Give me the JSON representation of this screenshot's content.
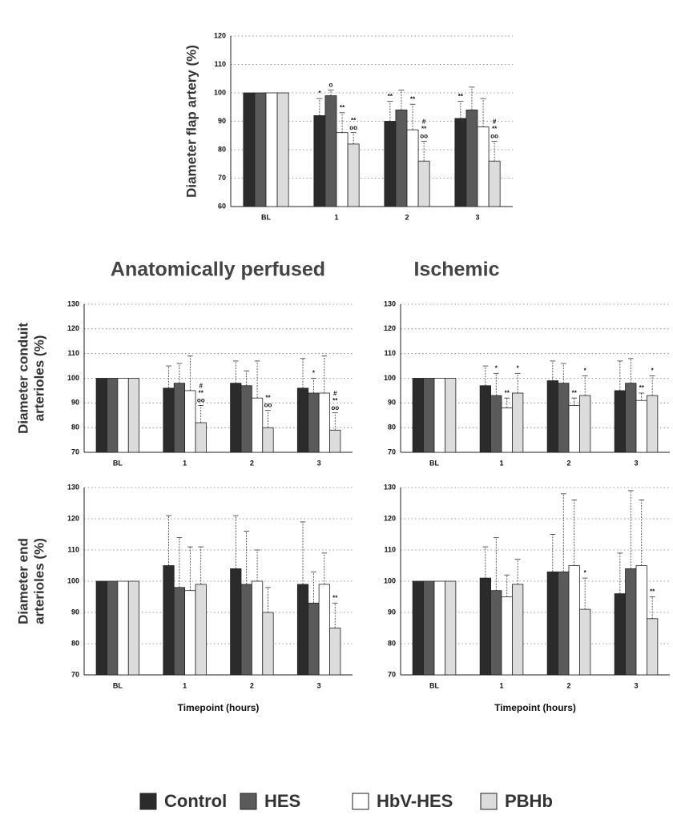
{
  "chart_data": [
    {
      "type": "bar",
      "ylabel": [
        "Diameter flap artery (%)"
      ],
      "categories": [
        "BL",
        "1",
        "2",
        "3"
      ],
      "ylim": [
        60,
        120
      ],
      "yticks": [
        60,
        70,
        80,
        90,
        100,
        110,
        120
      ],
      "grid": true,
      "series": [
        {
          "name": "Control",
          "color": "#2b2b2b",
          "values": [
            100,
            92,
            90,
            91
          ],
          "errors": [
            null,
            6,
            7,
            6
          ],
          "annotations": [
            null,
            [
              "*"
            ],
            [
              "**"
            ],
            [
              "**"
            ]
          ]
        },
        {
          "name": "HES",
          "color": "#5a5a5a",
          "values": [
            100,
            99,
            94,
            94
          ],
          "errors": [
            null,
            2,
            7,
            8
          ],
          "annotations": [
            null,
            [
              "o"
            ],
            null,
            null
          ]
        },
        {
          "name": "HbV-HES",
          "color": "#ffffff",
          "values": [
            100,
            86,
            87,
            88
          ],
          "errors": [
            null,
            7,
            9,
            10
          ],
          "annotations": [
            null,
            [
              "**"
            ],
            [
              "**"
            ],
            null
          ]
        },
        {
          "name": "PBHb",
          "color": "#dcdcdc",
          "values": [
            100,
            82,
            76,
            76
          ],
          "errors": [
            null,
            4,
            7,
            7
          ],
          "annotations": [
            null,
            [
              "**",
              "oo"
            ],
            [
              "#",
              "**",
              "oo"
            ],
            [
              "#",
              "**",
              "oo"
            ]
          ]
        }
      ]
    },
    {
      "type": "bar",
      "title": "Anatomically perfused",
      "ylabel": [
        "Diameter conduit",
        "arterioles (%)"
      ],
      "categories": [
        "BL",
        "1",
        "2",
        "3"
      ],
      "ylim": [
        70,
        130
      ],
      "yticks": [
        70,
        80,
        90,
        100,
        110,
        120,
        130
      ],
      "grid": true,
      "series": [
        {
          "name": "Control",
          "color": "#2b2b2b",
          "values": [
            100,
            96,
            98,
            96
          ],
          "errors": [
            null,
            9,
            9,
            12
          ],
          "annotations": [
            null,
            null,
            null,
            null
          ]
        },
        {
          "name": "HES",
          "color": "#5a5a5a",
          "values": [
            100,
            98,
            97,
            94
          ],
          "errors": [
            null,
            8,
            6,
            6
          ],
          "annotations": [
            null,
            null,
            null,
            [
              "*"
            ]
          ]
        },
        {
          "name": "HbV-HES",
          "color": "#ffffff",
          "values": [
            100,
            95,
            92,
            94
          ],
          "errors": [
            null,
            14,
            15,
            15
          ],
          "annotations": [
            null,
            null,
            null,
            null
          ]
        },
        {
          "name": "PBHb",
          "color": "#dcdcdc",
          "values": [
            100,
            82,
            80,
            79
          ],
          "errors": [
            null,
            7,
            7,
            7
          ],
          "annotations": [
            null,
            [
              "#",
              "**",
              "oo"
            ],
            [
              "**",
              "oo"
            ],
            [
              "#",
              "**",
              "oo"
            ]
          ]
        }
      ]
    },
    {
      "type": "bar",
      "title": "Ischemic",
      "categories": [
        "BL",
        "1",
        "2",
        "3"
      ],
      "ylim": [
        70,
        130
      ],
      "yticks": [
        70,
        80,
        90,
        100,
        110,
        120,
        130
      ],
      "grid": true,
      "series": [
        {
          "name": "Control",
          "color": "#2b2b2b",
          "values": [
            100,
            97,
            99,
            95
          ],
          "errors": [
            null,
            8,
            8,
            12
          ],
          "annotations": [
            null,
            null,
            null,
            null
          ]
        },
        {
          "name": "HES",
          "color": "#5a5a5a",
          "values": [
            100,
            93,
            98,
            98
          ],
          "errors": [
            null,
            9,
            8,
            10
          ],
          "annotations": [
            null,
            [
              "*"
            ],
            null,
            null
          ]
        },
        {
          "name": "HbV-HES",
          "color": "#ffffff",
          "values": [
            100,
            88,
            89,
            91
          ],
          "errors": [
            null,
            4,
            3,
            3
          ],
          "annotations": [
            null,
            [
              "**"
            ],
            [
              "**"
            ],
            [
              "**"
            ]
          ]
        },
        {
          "name": "PBHb",
          "color": "#dcdcdc",
          "values": [
            100,
            94,
            93,
            93
          ],
          "errors": [
            null,
            8,
            8,
            8
          ],
          "annotations": [
            null,
            [
              "*"
            ],
            [
              "*"
            ],
            [
              "*"
            ]
          ]
        }
      ]
    },
    {
      "type": "bar",
      "ylabel": [
        "Diameter end",
        "arterioles (%)"
      ],
      "xlabel": "Timepoint (hours)",
      "categories": [
        "BL",
        "1",
        "2",
        "3"
      ],
      "ylim": [
        70,
        130
      ],
      "yticks": [
        70,
        80,
        90,
        100,
        110,
        120,
        130
      ],
      "grid": true,
      "series": [
        {
          "name": "Control",
          "color": "#2b2b2b",
          "values": [
            100,
            105,
            104,
            99
          ],
          "errors": [
            null,
            16,
            17,
            20
          ],
          "annotations": [
            null,
            null,
            null,
            null
          ]
        },
        {
          "name": "HES",
          "color": "#5a5a5a",
          "values": [
            100,
            98,
            99,
            93
          ],
          "errors": [
            null,
            16,
            17,
            10
          ],
          "annotations": [
            null,
            null,
            null,
            null
          ]
        },
        {
          "name": "HbV-HES",
          "color": "#ffffff",
          "values": [
            100,
            97,
            100,
            99
          ],
          "errors": [
            null,
            14,
            10,
            10
          ],
          "annotations": [
            null,
            null,
            null,
            null
          ]
        },
        {
          "name": "PBHb",
          "color": "#dcdcdc",
          "values": [
            100,
            99,
            90,
            85
          ],
          "errors": [
            null,
            12,
            8,
            8
          ],
          "annotations": [
            null,
            null,
            null,
            [
              "**"
            ]
          ]
        }
      ]
    },
    {
      "type": "bar",
      "xlabel": "Timepoint (hours)",
      "categories": [
        "BL",
        "1",
        "2",
        "3"
      ],
      "ylim": [
        70,
        130
      ],
      "yticks": [
        70,
        80,
        90,
        100,
        110,
        120,
        130
      ],
      "grid": true,
      "series": [
        {
          "name": "Control",
          "color": "#2b2b2b",
          "values": [
            100,
            101,
            103,
            96
          ],
          "errors": [
            null,
            10,
            12,
            13
          ],
          "annotations": [
            null,
            null,
            null,
            null
          ]
        },
        {
          "name": "HES",
          "color": "#5a5a5a",
          "values": [
            100,
            97,
            103,
            104
          ],
          "errors": [
            null,
            17,
            25,
            25
          ],
          "annotations": [
            null,
            null,
            null,
            null
          ]
        },
        {
          "name": "HbV-HES",
          "color": "#ffffff",
          "values": [
            100,
            95,
            105,
            105
          ],
          "errors": [
            null,
            7,
            21,
            21
          ],
          "annotations": [
            null,
            null,
            null,
            null
          ]
        },
        {
          "name": "PBHb",
          "color": "#dcdcdc",
          "values": [
            100,
            99,
            91,
            88
          ],
          "errors": [
            null,
            8,
            10,
            7
          ],
          "annotations": [
            null,
            null,
            [
              "*"
            ],
            [
              "**"
            ]
          ]
        }
      ]
    }
  ]
}
